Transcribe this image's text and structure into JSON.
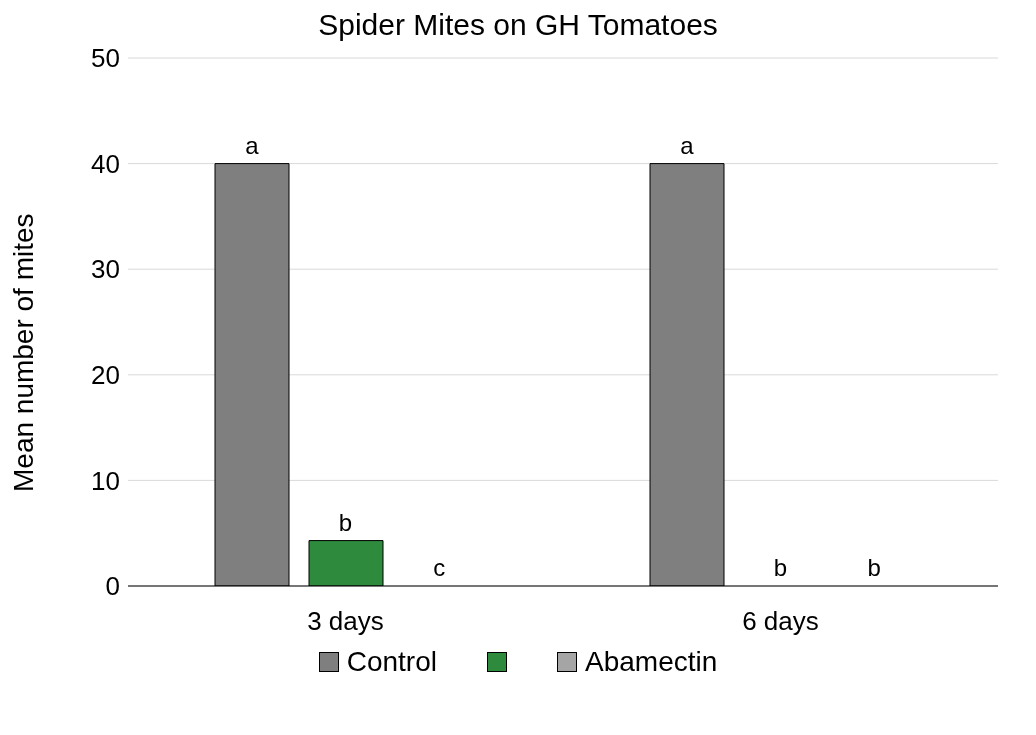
{
  "chart_data": {
    "type": "bar",
    "title": "Spider Mites on GH Tomatoes",
    "ylabel": "Mean number of mites",
    "categories": [
      "3 days",
      "6 days"
    ],
    "series": [
      {
        "name": "Control",
        "color": "#7f7f7f",
        "values": [
          40,
          40
        ]
      },
      {
        "color": "#2e8b3e",
        "values": [
          4.3,
          0
        ]
      },
      {
        "name": "Abamectin",
        "color": "#a5a5a5",
        "values": [
          0,
          0
        ]
      }
    ],
    "ylim": [
      0,
      50
    ],
    "yticks": [
      0,
      10,
      20,
      30,
      40,
      50
    ],
    "grid": "y",
    "legend": "bottom",
    "annotations": [
      "a",
      "b",
      "c",
      "a",
      "b",
      "b"
    ]
  }
}
